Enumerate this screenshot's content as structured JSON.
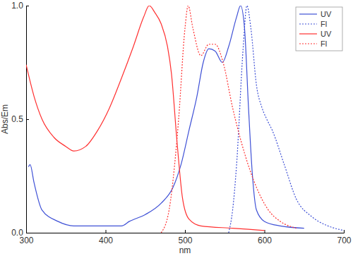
{
  "chart_data": {
    "type": "line",
    "x_label": "nm",
    "y_label": "Abs/Em",
    "xlim": [
      300,
      700
    ],
    "xticks": [
      300,
      400,
      500,
      600,
      700
    ],
    "ylim": [
      0,
      1
    ],
    "yticks": [
      {
        "value": 0,
        "label": "0.0"
      },
      {
        "value": 0.5,
        "label": "0.5"
      },
      {
        "value": 1,
        "label": "1.0"
      }
    ],
    "legend": "upper right",
    "series": [
      {
        "name": "UV",
        "color": "#3f51d6",
        "line_style": "solid",
        "x": [
          303,
          305,
          310,
          320,
          340,
          360,
          390,
          420,
          430,
          450,
          470,
          485,
          495,
          505,
          515,
          523,
          530,
          538,
          547,
          555,
          565,
          570,
          575,
          580,
          585,
          590,
          600,
          620,
          650
        ],
        "values": [
          0.29,
          0.3,
          0.22,
          0.1,
          0.05,
          0.03,
          0.03,
          0.03,
          0.05,
          0.08,
          0.13,
          0.2,
          0.3,
          0.45,
          0.6,
          0.75,
          0.81,
          0.8,
          0.75,
          0.82,
          0.95,
          1.0,
          0.9,
          0.55,
          0.25,
          0.1,
          0.05,
          0.03,
          0.02
        ]
      },
      {
        "name": "Fl",
        "color": "#3f51d6",
        "line_style": "dotted",
        "x": [
          555,
          560,
          565,
          573,
          578,
          583,
          590,
          597,
          603,
          610,
          625,
          640,
          660,
          680,
          700
        ],
        "values": [
          0.0,
          0.1,
          0.3,
          0.8,
          1.0,
          0.9,
          0.65,
          0.55,
          0.5,
          0.45,
          0.3,
          0.15,
          0.07,
          0.03,
          0.01
        ]
      },
      {
        "name": "UV",
        "color": "#ff3030",
        "line_style": "solid",
        "x": [
          300,
          310,
          320,
          335,
          350,
          360,
          375,
          390,
          405,
          420,
          435,
          448,
          455,
          462,
          470,
          478,
          483,
          490,
          497,
          505,
          520,
          560,
          600
        ],
        "values": [
          0.74,
          0.6,
          0.5,
          0.42,
          0.38,
          0.36,
          0.38,
          0.45,
          0.55,
          0.68,
          0.82,
          0.95,
          1.0,
          0.97,
          0.92,
          0.82,
          0.7,
          0.4,
          0.15,
          0.06,
          0.03,
          0.02,
          0.01
        ]
      },
      {
        "name": "Fl",
        "color": "#ff3030",
        "line_style": "dotted",
        "x": [
          470,
          480,
          487,
          492,
          500,
          504,
          510,
          520,
          530,
          538,
          548,
          560,
          575,
          590,
          605,
          620,
          640
        ],
        "values": [
          0.0,
          0.1,
          0.3,
          0.5,
          0.9,
          1.0,
          0.9,
          0.78,
          0.83,
          0.83,
          0.75,
          0.55,
          0.35,
          0.2,
          0.1,
          0.05,
          0.02
        ]
      }
    ]
  }
}
